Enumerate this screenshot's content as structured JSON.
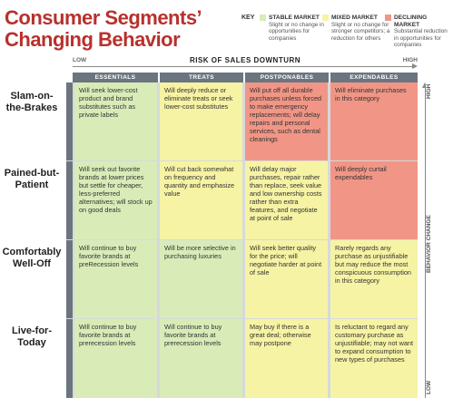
{
  "title": {
    "line1": "Consumer Segments’",
    "line2": "Changing Behavior"
  },
  "key": {
    "label": "KEY",
    "items": [
      {
        "name": "STABLE MARKET",
        "desc": "Slight or no change in opportunities for companies",
        "color": "#d9ecb8"
      },
      {
        "name": "MIXED MARKET",
        "desc": "Slight or no change for stronger competitors; a reduction for others",
        "color": "#f6f3a4"
      },
      {
        "name": "DECLINING MARKET",
        "desc": "Substantial reduction in opportunities for companies",
        "color": "#f19686"
      }
    ]
  },
  "top_axis": {
    "low": "LOW",
    "title": "RISK OF SALES DOWNTURN",
    "high": "HIGH"
  },
  "right_axis": {
    "high": "HIGH",
    "title": "BEHAVIOR CHANGE",
    "low": "LOW"
  },
  "columns": [
    "ESSENTIALS",
    "TREATS",
    "POSTPONABLES",
    "EXPENDABLES"
  ],
  "colors": {
    "stable": "#d9ecb8",
    "mixed": "#f6f3a4",
    "declining": "#f19686",
    "header": "#6b7580",
    "title": "#b7312d"
  },
  "rows": [
    {
      "label_line1": "Slam-on-",
      "label_line2": "the-Brakes",
      "cells": [
        {
          "text": "Will seek lower-cost product and brand substitutes such as private labels",
          "market": "stable"
        },
        {
          "text": "Will deeply reduce or eliminate treats or seek lower-cost substitutes",
          "market": "mixed"
        },
        {
          "text": "Will put off all durable purchases unless forced to make emergency replacements; will delay repairs and personal services, such as dental cleanings",
          "market": "declining"
        },
        {
          "text": "Will eliminate purchases in this category",
          "market": "declining"
        }
      ]
    },
    {
      "label_line1": "Pained-but-",
      "label_line2": "Patient",
      "cells": [
        {
          "text": "Will seek out favorite brands at lower prices but settle for cheaper, less-preferred alternatives; will stock up on good deals",
          "market": "stable"
        },
        {
          "text": "Will cut back somewhat on frequency and quantity and emphasize value",
          "market": "mixed"
        },
        {
          "text": "Will delay major purchases, repair rather than replace, seek value and low ownership costs rather than extra features, and negotiate at point of sale",
          "market": "mixed"
        },
        {
          "text": "Will deeply curtail expendables",
          "market": "declining"
        }
      ]
    },
    {
      "label_line1": "Comfortably",
      "label_line2": "Well-Off",
      "cells": [
        {
          "text": "Will continue to buy favorite brands at preRecession levels",
          "market": "stable"
        },
        {
          "text": "Will be more selective in purchasing luxuries",
          "market": "stable"
        },
        {
          "text": "Will seek better quality for the price; will negotiate harder at point of sale",
          "market": "mixed"
        },
        {
          "text": "Rarely regards any purchase as unjustifiable but may reduce the most conspicuous consumption in this category",
          "market": "mixed"
        }
      ]
    },
    {
      "label_line1": "Live-for-",
      "label_line2": "Today",
      "cells": [
        {
          "text": "Will continue to buy favorite brands at prerecession levels",
          "market": "stable"
        },
        {
          "text": "Will continue to buy favorite brands at prerecession levels",
          "market": "stable"
        },
        {
          "text": "May buy if there is a great deal; otherwise may postpone",
          "market": "mixed"
        },
        {
          "text": "Is reluctant to regard any customary purchase as unjustifiable; may not want to expand consumption to new types of purchases",
          "market": "mixed"
        }
      ]
    }
  ]
}
